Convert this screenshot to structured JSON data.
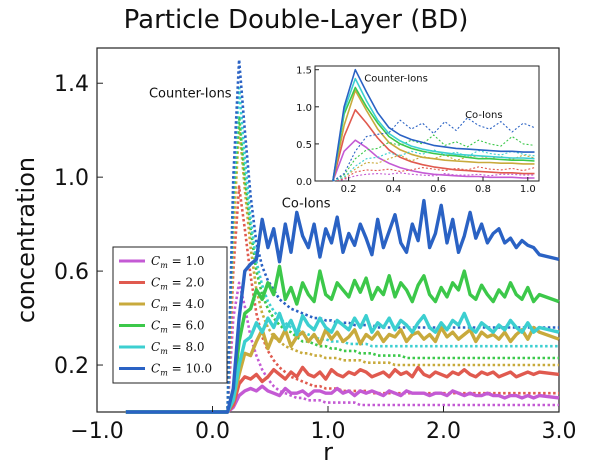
{
  "chart_data": {
    "type": "line",
    "title": "Particle Double-Layer (BD)",
    "xlabel": "r",
    "ylabel": "concentration",
    "xlim": [
      -1.0,
      3.0
    ],
    "ylim": [
      0.0,
      1.55
    ],
    "xticks": [
      {
        "v": -1.0,
        "label": "−1.0"
      },
      {
        "v": 0.0,
        "label": "0.0"
      },
      {
        "v": 1.0,
        "label": "1.0"
      },
      {
        "v": 2.0,
        "label": "2.0"
      },
      {
        "v": 3.0,
        "label": "3.0"
      }
    ],
    "yticks": [
      {
        "v": 0.2,
        "label": "0.2"
      },
      {
        "v": 0.6,
        "label": "0.6"
      },
      {
        "v": 1.0,
        "label": "1.0"
      },
      {
        "v": 1.4,
        "label": "1.4"
      }
    ],
    "grid": false,
    "legend_position": "left-center",
    "annotations": [
      {
        "text": "Counter-Ions",
        "x": -0.55,
        "y": 1.34
      },
      {
        "text": "Co-Ions",
        "x": 0.6,
        "y": 0.87
      }
    ],
    "legend": {
      "label_prefix": "C",
      "label_sub": "m",
      "entries": [
        "= 1.0",
        "= 2.0",
        "= 4.0",
        "= 6.0",
        "= 8.0",
        "= 10.0"
      ]
    },
    "series": [
      {
        "name": "C_m = 1.0",
        "color": "#c45ad4",
        "co_ions": [
          0.0,
          0.0,
          0.0,
          0.0,
          0.0,
          0.0,
          0.02,
          0.07,
          0.09,
          0.1,
          0.09,
          0.11,
          0.09,
          0.08,
          0.07,
          0.1,
          0.08,
          0.08,
          0.09,
          0.07,
          0.09,
          0.09,
          0.08,
          0.08,
          0.1,
          0.08,
          0.09,
          0.07,
          0.09,
          0.08,
          0.09,
          0.08,
          0.07,
          0.09,
          0.08,
          0.07,
          0.09,
          0.08,
          0.08,
          0.08,
          0.07,
          0.08,
          0.08,
          0.07,
          0.09,
          0.08,
          0.07,
          0.08,
          0.07,
          0.07,
          0.08,
          0.07,
          0.07,
          0.06,
          0.07,
          0.07,
          0.06,
          0.07,
          0.06,
          0.07,
          0.06
        ],
        "counter_ions": [
          0.0,
          0.0,
          0.0,
          0.0,
          0.0,
          0.0,
          0.4,
          0.55,
          0.45,
          0.32,
          0.24,
          0.18,
          0.14,
          0.11,
          0.09,
          0.08,
          0.07,
          0.06,
          0.06,
          0.05,
          0.05,
          0.05,
          0.04,
          0.04,
          0.04,
          0.04,
          0.04,
          0.04,
          0.03,
          0.03,
          0.03,
          0.03,
          0.03,
          0.03,
          0.03,
          0.03,
          0.03,
          0.03,
          0.03,
          0.03,
          0.03,
          0.03,
          0.03,
          0.03,
          0.03,
          0.03,
          0.03,
          0.03,
          0.03,
          0.03,
          0.03,
          0.03,
          0.03,
          0.03,
          0.03,
          0.03,
          0.03,
          0.03,
          0.03,
          0.03,
          0.03
        ]
      },
      {
        "name": "C_m = 2.0",
        "color": "#e05a4f",
        "co_ions": [
          0.0,
          0.0,
          0.0,
          0.0,
          0.0,
          0.0,
          0.03,
          0.12,
          0.15,
          0.14,
          0.16,
          0.13,
          0.15,
          0.18,
          0.16,
          0.14,
          0.17,
          0.15,
          0.19,
          0.16,
          0.15,
          0.17,
          0.14,
          0.18,
          0.16,
          0.15,
          0.17,
          0.16,
          0.18,
          0.17,
          0.15,
          0.16,
          0.17,
          0.15,
          0.18,
          0.16,
          0.17,
          0.15,
          0.19,
          0.16,
          0.15,
          0.17,
          0.16,
          0.15,
          0.17,
          0.16,
          0.18,
          0.16,
          0.15,
          0.17,
          0.16,
          0.17,
          0.15,
          0.16,
          0.17,
          0.15,
          0.16,
          0.17,
          0.16,
          0.17,
          0.16
        ],
        "counter_ions": [
          0.0,
          0.0,
          0.0,
          0.0,
          0.0,
          0.0,
          0.6,
          0.96,
          0.78,
          0.58,
          0.42,
          0.32,
          0.26,
          0.22,
          0.19,
          0.17,
          0.15,
          0.14,
          0.13,
          0.12,
          0.11,
          0.11,
          0.1,
          0.1,
          0.1,
          0.09,
          0.09,
          0.09,
          0.09,
          0.09,
          0.08,
          0.08,
          0.08,
          0.08,
          0.08,
          0.08,
          0.08,
          0.08,
          0.08,
          0.08,
          0.08,
          0.08,
          0.08,
          0.08,
          0.08,
          0.08,
          0.08,
          0.08,
          0.08,
          0.08,
          0.08,
          0.08,
          0.08,
          0.08,
          0.08,
          0.08,
          0.08,
          0.08,
          0.08,
          0.08,
          0.08
        ]
      },
      {
        "name": "C_m = 4.0",
        "color": "#c8aa3c",
        "co_ions": [
          0.0,
          0.0,
          0.0,
          0.0,
          0.0,
          0.0,
          0.05,
          0.16,
          0.25,
          0.24,
          0.3,
          0.35,
          0.27,
          0.33,
          0.3,
          0.35,
          0.28,
          0.32,
          0.34,
          0.3,
          0.33,
          0.29,
          0.35,
          0.31,
          0.34,
          0.3,
          0.32,
          0.35,
          0.29,
          0.33,
          0.31,
          0.34,
          0.3,
          0.33,
          0.32,
          0.35,
          0.3,
          0.33,
          0.34,
          0.31,
          0.33,
          0.3,
          0.36,
          0.32,
          0.34,
          0.31,
          0.33,
          0.35,
          0.3,
          0.34,
          0.32,
          0.33,
          0.31,
          0.34,
          0.3,
          0.33,
          0.35,
          0.31,
          0.36,
          0.34,
          0.31
        ],
        "counter_ions": [
          0.0,
          0.0,
          0.0,
          0.0,
          0.0,
          0.0,
          0.75,
          1.22,
          0.95,
          0.7,
          0.52,
          0.42,
          0.36,
          0.32,
          0.3,
          0.28,
          0.27,
          0.26,
          0.25,
          0.25,
          0.24,
          0.24,
          0.23,
          0.23,
          0.23,
          0.22,
          0.22,
          0.22,
          0.22,
          0.21,
          0.21,
          0.21,
          0.21,
          0.21,
          0.2,
          0.2,
          0.2,
          0.2,
          0.2,
          0.2,
          0.2,
          0.2,
          0.2,
          0.2,
          0.2,
          0.2,
          0.2,
          0.2,
          0.2,
          0.2,
          0.2,
          0.2,
          0.2,
          0.2,
          0.2,
          0.2,
          0.2,
          0.2,
          0.2,
          0.2,
          0.2
        ]
      },
      {
        "name": "C_m = 6.0",
        "color": "#3cc84a",
        "co_ions": [
          0.0,
          0.0,
          0.0,
          0.0,
          0.0,
          0.0,
          0.08,
          0.3,
          0.42,
          0.44,
          0.52,
          0.48,
          0.55,
          0.5,
          0.62,
          0.48,
          0.53,
          0.46,
          0.55,
          0.5,
          0.47,
          0.6,
          0.5,
          0.48,
          0.55,
          0.52,
          0.49,
          0.56,
          0.51,
          0.57,
          0.48,
          0.53,
          0.5,
          0.58,
          0.49,
          0.55,
          0.52,
          0.47,
          0.54,
          0.58,
          0.5,
          0.47,
          0.53,
          0.49,
          0.55,
          0.52,
          0.6,
          0.5,
          0.48,
          0.54,
          0.5,
          0.47,
          0.52,
          0.49,
          0.55,
          0.5,
          0.48,
          0.53,
          0.47,
          0.5,
          0.47
        ],
        "counter_ions": [
          0.0,
          0.0,
          0.0,
          0.0,
          0.0,
          0.0,
          0.9,
          1.26,
          1.0,
          0.78,
          0.6,
          0.5,
          0.44,
          0.4,
          0.37,
          0.35,
          0.34,
          0.32,
          0.3,
          0.3,
          0.29,
          0.28,
          0.28,
          0.27,
          0.27,
          0.26,
          0.26,
          0.26,
          0.25,
          0.25,
          0.25,
          0.24,
          0.24,
          0.24,
          0.24,
          0.24,
          0.23,
          0.23,
          0.23,
          0.23,
          0.23,
          0.23,
          0.23,
          0.23,
          0.23,
          0.23,
          0.23,
          0.23,
          0.23,
          0.23,
          0.23,
          0.23,
          0.23,
          0.23,
          0.23,
          0.23,
          0.23,
          0.23,
          0.23,
          0.23,
          0.23
        ]
      },
      {
        "name": "C_m = 8.0",
        "color": "#3ccfd0",
        "co_ions": [
          0.0,
          0.0,
          0.0,
          0.0,
          0.0,
          0.0,
          0.05,
          0.2,
          0.3,
          0.32,
          0.38,
          0.34,
          0.4,
          0.36,
          0.42,
          0.35,
          0.39,
          0.33,
          0.41,
          0.37,
          0.35,
          0.4,
          0.36,
          0.34,
          0.39,
          0.37,
          0.35,
          0.4,
          0.36,
          0.41,
          0.34,
          0.38,
          0.36,
          0.4,
          0.35,
          0.39,
          0.37,
          0.34,
          0.38,
          0.41,
          0.36,
          0.34,
          0.38,
          0.35,
          0.39,
          0.37,
          0.42,
          0.36,
          0.34,
          0.38,
          0.36,
          0.34,
          0.37,
          0.35,
          0.39,
          0.36,
          0.34,
          0.38,
          0.34,
          0.36,
          0.34
        ],
        "counter_ions": [
          0.0,
          0.0,
          0.0,
          0.0,
          0.0,
          0.0,
          0.95,
          1.38,
          1.08,
          0.82,
          0.64,
          0.54,
          0.47,
          0.43,
          0.4,
          0.38,
          0.36,
          0.35,
          0.34,
          0.33,
          0.32,
          0.31,
          0.31,
          0.3,
          0.3,
          0.3,
          0.29,
          0.29,
          0.29,
          0.29,
          0.28,
          0.28,
          0.28,
          0.28,
          0.28,
          0.28,
          0.28,
          0.28,
          0.28,
          0.28,
          0.28,
          0.28,
          0.28,
          0.28,
          0.28,
          0.28,
          0.28,
          0.28,
          0.28,
          0.28,
          0.28,
          0.28,
          0.28,
          0.28,
          0.28,
          0.28,
          0.28,
          0.28,
          0.28,
          0.28,
          0.28
        ]
      },
      {
        "name": "C_m = 10.0",
        "color": "#2a62c4",
        "co_ions": [
          0.0,
          0.0,
          0.0,
          0.0,
          0.0,
          0.0,
          0.1,
          0.4,
          0.6,
          0.63,
          0.65,
          0.82,
          0.7,
          0.78,
          0.64,
          0.8,
          0.68,
          0.85,
          0.75,
          0.7,
          0.8,
          0.66,
          0.78,
          0.72,
          0.83,
          0.68,
          0.76,
          0.71,
          0.8,
          0.74,
          0.67,
          0.82,
          0.7,
          0.77,
          0.84,
          0.72,
          0.68,
          0.8,
          0.73,
          0.9,
          0.7,
          0.76,
          0.88,
          0.72,
          0.82,
          0.68,
          0.75,
          0.85,
          0.74,
          0.8,
          0.72,
          0.76,
          0.78,
          0.72,
          0.74,
          0.7,
          0.73,
          0.71,
          0.7,
          0.67,
          0.65
        ],
        "counter_ions": [
          0.0,
          0.0,
          0.0,
          0.0,
          0.0,
          0.0,
          1.0,
          1.5,
          1.2,
          0.92,
          0.72,
          0.62,
          0.56,
          0.52,
          0.48,
          0.46,
          0.44,
          0.43,
          0.42,
          0.41,
          0.4,
          0.4,
          0.39,
          0.39,
          0.38,
          0.38,
          0.38,
          0.37,
          0.37,
          0.37,
          0.37,
          0.36,
          0.36,
          0.36,
          0.36,
          0.36,
          0.36,
          0.36,
          0.36,
          0.36,
          0.36,
          0.36,
          0.36,
          0.36,
          0.36,
          0.36,
          0.36,
          0.36,
          0.36,
          0.36,
          0.36,
          0.36,
          0.36,
          0.36,
          0.36,
          0.36,
          0.36,
          0.36,
          0.36,
          0.36,
          0.36
        ]
      }
    ],
    "x": [
      -0.75,
      -0.65,
      -0.55,
      -0.45,
      -0.35,
      0.13,
      0.18,
      0.23,
      0.28,
      0.33,
      0.38,
      0.43,
      0.48,
      0.53,
      0.58,
      0.63,
      0.68,
      0.73,
      0.78,
      0.83,
      0.88,
      0.93,
      0.98,
      1.03,
      1.08,
      1.13,
      1.18,
      1.23,
      1.28,
      1.33,
      1.38,
      1.43,
      1.48,
      1.53,
      1.58,
      1.63,
      1.68,
      1.73,
      1.78,
      1.83,
      1.88,
      1.93,
      1.98,
      2.03,
      2.08,
      2.13,
      2.18,
      2.23,
      2.28,
      2.33,
      2.38,
      2.43,
      2.48,
      2.53,
      2.58,
      2.63,
      2.68,
      2.73,
      2.78,
      2.83,
      3.0
    ],
    "inset": {
      "xlim": [
        0.05,
        1.05
      ],
      "ylim": [
        0.0,
        1.55
      ],
      "xticks": [
        {
          "v": 0.2,
          "label": "0.2"
        },
        {
          "v": 0.4,
          "label": "0.4"
        },
        {
          "v": 0.6,
          "label": "0.6"
        },
        {
          "v": 0.8,
          "label": "0.8"
        },
        {
          "v": 1.0,
          "label": "1.0"
        }
      ],
      "yticks": [
        {
          "v": 0.0,
          "label": "0.0"
        },
        {
          "v": 0.5,
          "label": "0.5"
        },
        {
          "v": 1.0,
          "label": "1.0"
        },
        {
          "v": 1.5,
          "label": "1.5"
        }
      ],
      "annotations": [
        {
          "text": "Counter-Ions",
          "x": 0.27,
          "y": 1.34
        },
        {
          "text": "Co-Ions",
          "x": 0.72,
          "y": 0.85
        }
      ]
    }
  }
}
